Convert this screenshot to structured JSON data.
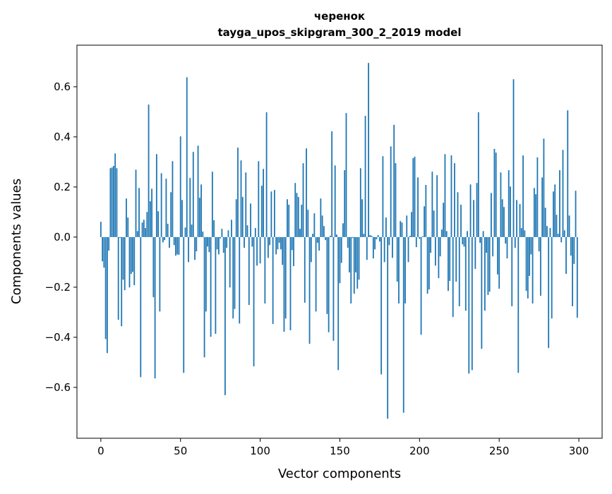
{
  "chart_data": {
    "type": "bar",
    "title_line1": "черенок",
    "title_line2": "tayga_upos_skipgram_300_2_2019 model",
    "xlabel": "Vector components",
    "ylabel": "Components values",
    "xlim": [
      -15,
      314.6
    ],
    "ylim": [
      -0.803,
      0.766
    ],
    "xticks": [
      0,
      50,
      100,
      150,
      200,
      250,
      300
    ],
    "yticks": [
      -0.6,
      -0.4,
      -0.2,
      0.0,
      0.2,
      0.4,
      0.6
    ],
    "ytick_labels": [
      "−0.6",
      "−0.4",
      "−0.2",
      "0.0",
      "0.2",
      "0.4",
      "0.6"
    ],
    "bar_color": "#1f77b4",
    "grid": false,
    "values": [
      0.061,
      -0.097,
      -0.122,
      -0.407,
      -0.463,
      -0.054,
      0.275,
      0.278,
      0.284,
      0.334,
      0.275,
      -0.33,
      -0.003,
      -0.356,
      -0.17,
      -0.212,
      0.154,
      0.078,
      -0.201,
      -0.147,
      -0.139,
      -0.192,
      0.269,
      0.024,
      0.196,
      -0.559,
      0.058,
      0.069,
      0.036,
      0.1,
      0.529,
      0.143,
      0.193,
      -0.24,
      -0.564,
      0.331,
      0.103,
      -0.297,
      0.255,
      -0.021,
      -0.012,
      0.233,
      0.053,
      -0.043,
      0.179,
      0.303,
      -0.032,
      -0.074,
      -0.069,
      -0.071,
      0.402,
      0.148,
      -0.542,
      0.038,
      0.638,
      -0.1,
      0.236,
      0.05,
      0.34,
      -0.091,
      -0.057,
      0.365,
      0.157,
      0.21,
      0.022,
      -0.48,
      -0.297,
      -0.038,
      -0.06,
      -0.398,
      0.261,
      0.067,
      -0.386,
      -0.049,
      -0.069,
      -0.005,
      0.033,
      -0.063,
      -0.631,
      -0.043,
      0.027,
      -0.201,
      0.069,
      -0.325,
      -0.287,
      0.151,
      0.357,
      -0.345,
      0.306,
      0.16,
      -0.043,
      0.258,
      0.047,
      -0.271,
      0.134,
      -0.038,
      -0.516,
      0.036,
      -0.114,
      0.303,
      -0.105,
      0.205,
      0.272,
      -0.265,
      0.498,
      -0.083,
      -0.032,
      0.182,
      -0.347,
      0.188,
      -0.069,
      -0.049,
      -0.023,
      -0.049,
      -0.111,
      -0.378,
      -0.325,
      0.151,
      0.129,
      -0.372,
      -0.052,
      -0.116,
      0.216,
      0.176,
      0.16,
      0.033,
      0.129,
      0.295,
      -0.262,
      0.354,
      0.109,
      -0.426,
      -0.1,
      0.013,
      0.095,
      -0.297,
      -0.023,
      -0.054,
      0.154,
      0.086,
      0.044,
      -0.012,
      -0.307,
      -0.38,
      0.005,
      0.422,
      -0.414,
      0.286,
      0.01,
      -0.531,
      -0.184,
      -0.103,
      0.055,
      0.267,
      0.495,
      -0.043,
      -0.141,
      -0.265,
      -0.004,
      -0.226,
      -0.141,
      -0.206,
      -0.17,
      0.275,
      0.151,
      0.013,
      0.484,
      -0.091,
      0.695,
      0.008,
      0.005,
      -0.085,
      -0.049,
      -0.009,
      0.008,
      -0.018,
      -0.548,
      0.323,
      -0.1,
      0.078,
      -0.725,
      -0.032,
      0.362,
      -0.083,
      0.448,
      0.295,
      -0.178,
      -0.265,
      0.064,
      0.058,
      -0.701,
      -0.265,
      0.086,
      -0.1,
      0.005,
      0.1,
      0.315,
      0.321,
      -0.04,
      0.238,
      -0.007,
      -0.39,
      0.003,
      0.123,
      0.208,
      -0.226,
      -0.209,
      -0.063,
      0.261,
      0.106,
      -0.114,
      0.247,
      -0.164,
      -0.077,
      0.03,
      0.137,
      0.331,
      0.024,
      -0.215,
      -0.175,
      0.326,
      -0.319,
      0.295,
      -0.178,
      0.179,
      -0.276,
      0.129,
      -0.029,
      -0.038,
      -0.294,
      0.024,
      -0.545,
      0.21,
      -0.531,
      0.148,
      -0.127,
      0.216,
      0.498,
      -0.023,
      -0.446,
      0.024,
      -0.294,
      -0.063,
      -0.231,
      -0.218,
      0.176,
      -0.077,
      0.352,
      0.337,
      -0.149,
      -0.206,
      0.258,
      0.151,
      0.12,
      -0.026,
      -0.085,
      0.267,
      0.202,
      -0.276,
      0.63,
      -0.043,
      0.148,
      -0.542,
      0.132,
      0.036,
      0.326,
      0.027,
      -0.215,
      -0.245,
      -0.155,
      -0.069,
      -0.265,
      0.196,
      0.171,
      0.318,
      -0.057,
      -0.234,
      0.238,
      0.393,
      0.117,
      0.044,
      -0.443,
      0.036,
      -0.325,
      0.182,
      0.21,
      0.089,
      0.013,
      0.267,
      -0.021,
      0.348,
      0.027,
      -0.147,
      0.506,
      0.086,
      -0.074,
      -0.276,
      -0.107,
      0.185,
      -0.322
    ]
  }
}
